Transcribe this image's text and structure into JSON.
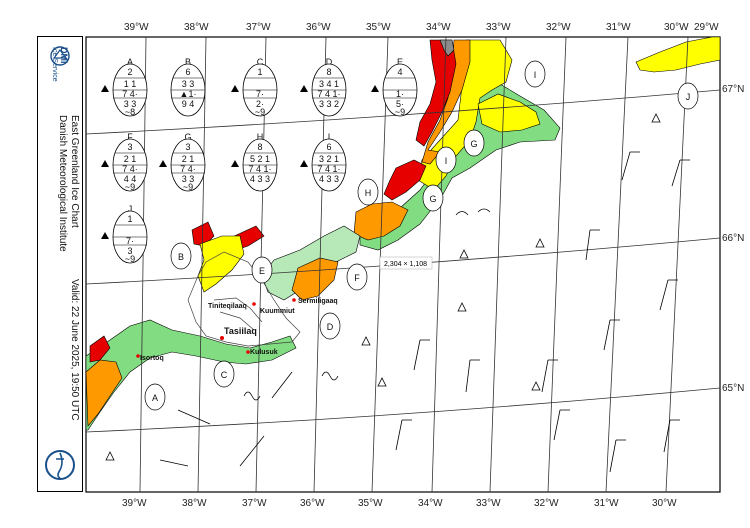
{
  "title": "East Greenland Ice Chart",
  "institute": "Danish Meteorological Institute",
  "logo": {
    "line1": "DMI",
    "line2": "Ice Service"
  },
  "valid": "Valid: 22 June 2025, 19:50 UTC",
  "top_lon_labels": [
    "39°W",
    "38°W",
    "37°W",
    "36°W",
    "35°W",
    "34°W",
    "33°W",
    "32°W",
    "31°W",
    "30°W",
    "29°W"
  ],
  "bottom_lon_labels": [
    "39°W",
    "38°W",
    "37°W",
    "36°W",
    "35°W",
    "34°W",
    "33°W",
    "32°W",
    "31°W",
    "30°W"
  ],
  "lat_labels": [
    "67°N",
    "66°N",
    "65°N"
  ],
  "places": [
    "Tiniteqilaaq",
    "Kuummiut",
    "Sermiligaaq",
    "Tasiilaq",
    "Kulusuk",
    "Isortoq"
  ],
  "region_labels": [
    "A",
    "B",
    "C",
    "D",
    "E",
    "F",
    "G",
    "G",
    "H",
    "I",
    "I",
    "J"
  ],
  "dimension_tooltip": "2,304 × 1,108",
  "egg_codes": [
    {
      "id": "A",
      "ct": "2",
      "top": "1 1",
      "mid": "7 4·",
      "low": "3 3",
      "fz": "~8"
    },
    {
      "id": "B",
      "ct": "6",
      "top": "3 3",
      "mid": "▲1·",
      "low": "9 4",
      "fz": ""
    },
    {
      "id": "C",
      "ct": "1",
      "top": "",
      "mid": "7·",
      "low": "2·",
      "fz": "~9"
    },
    {
      "id": "D",
      "ct": "8",
      "top": "3 4 1",
      "mid": "7 4 1·",
      "low": "3 3 2",
      "fz": ""
    },
    {
      "id": "E",
      "ct": "4",
      "top": "",
      "mid": "1·",
      "low": "5·",
      "fz": "~9"
    },
    {
      "id": "F",
      "ct": "3",
      "top": "2 1",
      "mid": "7 4·",
      "low": "4 4",
      "fz": "~9"
    },
    {
      "id": "G",
      "ct": "3",
      "top": "2 1",
      "mid": "7 4·",
      "low": "3 3",
      "fz": "~9"
    },
    {
      "id": "H",
      "ct": "8",
      "top": "5 2 1",
      "mid": "7 4 1·",
      "low": "4 3 3",
      "fz": ""
    },
    {
      "id": "I",
      "ct": "6",
      "top": "3 2 1",
      "mid": "7 4 1·",
      "low": "4 3 3",
      "fz": ""
    },
    {
      "id": "J",
      "ct": "1",
      "top": "",
      "mid": "7·",
      "low": "3",
      "fz": "~9"
    }
  ],
  "colors": {
    "land": "#ffffff",
    "open_water": "#b7e8b7",
    "very_open": "#82dd82",
    "open_drift": "#ffff00",
    "close_drift": "#ff9900",
    "very_close": "#e60000",
    "fast_ice": "#8c8c8c",
    "grid": "#333333"
  }
}
